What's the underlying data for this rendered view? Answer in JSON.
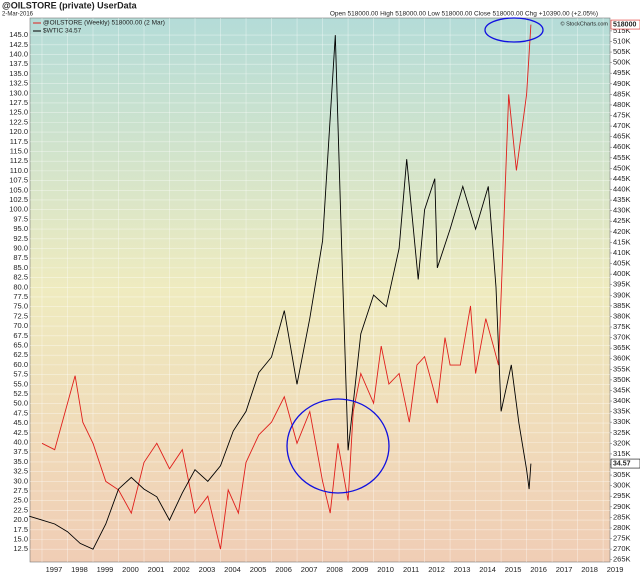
{
  "chart_data": {
    "type": "line",
    "title": "@OILSTORE (private) UserData",
    "subtitle": "2-Mar-2016",
    "quote": "Open 518000.00  High 518000.00  Low 518000.00  Close 518000.00  Chg +10390.00 (+2.05%)",
    "credit": "© StockCharts.com",
    "grid": true,
    "xlim": [
      1996.53,
      2019.27
    ],
    "xticks": [
      1997,
      1998,
      1999,
      2000,
      2001,
      2002,
      2003,
      2004,
      2005,
      2006,
      2007,
      2008,
      2009,
      2010,
      2011,
      2012,
      2013,
      2014,
      2015,
      2016,
      2017,
      2018,
      2019
    ],
    "ylim": [
      9.2,
      149.4
    ],
    "yticks": [
      {
        "value": 12.5,
        "label": "12.5"
      },
      {
        "value": 15,
        "label": "15.0"
      },
      {
        "value": 17.5,
        "label": "17.5"
      },
      {
        "value": 20,
        "label": "20.0"
      },
      {
        "value": 22.5,
        "label": "22.5"
      },
      {
        "value": 25,
        "label": "25.0"
      },
      {
        "value": 27.5,
        "label": "27.5"
      },
      {
        "value": 30,
        "label": "30.0"
      },
      {
        "value": 32.5,
        "label": "32.5"
      },
      {
        "value": 35,
        "label": "35.0"
      },
      {
        "value": 37.5,
        "label": "37.5"
      },
      {
        "value": 40,
        "label": "40.0"
      },
      {
        "value": 42.5,
        "label": "42.5"
      },
      {
        "value": 45,
        "label": "45.0"
      },
      {
        "value": 47.5,
        "label": "47.5"
      },
      {
        "value": 50,
        "label": "50.0"
      },
      {
        "value": 52.5,
        "label": "52.5"
      },
      {
        "value": 55,
        "label": "55.0"
      },
      {
        "value": 57.5,
        "label": "57.5"
      },
      {
        "value": 60,
        "label": "60.0"
      },
      {
        "value": 62.5,
        "label": "62.5"
      },
      {
        "value": 65,
        "label": "65.0"
      },
      {
        "value": 67.5,
        "label": "67.5"
      },
      {
        "value": 70,
        "label": "70.0"
      },
      {
        "value": 72.5,
        "label": "72.5"
      },
      {
        "value": 75,
        "label": "75.0"
      },
      {
        "value": 77.5,
        "label": "77.5"
      },
      {
        "value": 80,
        "label": "80.0"
      },
      {
        "value": 82.5,
        "label": "82.5"
      },
      {
        "value": 85,
        "label": "85.0"
      },
      {
        "value": 87.5,
        "label": "87.5"
      },
      {
        "value": 90,
        "label": "90.0"
      },
      {
        "value": 92.5,
        "label": "92.5"
      },
      {
        "value": 95,
        "label": "95.0"
      },
      {
        "value": 97.5,
        "label": "97.5"
      },
      {
        "value": 100,
        "label": "100.0"
      },
      {
        "value": 102.5,
        "label": "102.5"
      },
      {
        "value": 105,
        "label": "105.0"
      },
      {
        "value": 107.5,
        "label": "107.5"
      },
      {
        "value": 110,
        "label": "110.0"
      },
      {
        "value": 112.5,
        "label": "112.5"
      },
      {
        "value": 115,
        "label": "115.0"
      },
      {
        "value": 117.5,
        "label": "117.5"
      },
      {
        "value": 120,
        "label": "120.0"
      },
      {
        "value": 122.5,
        "label": "122.5"
      },
      {
        "value": 125,
        "label": "125.0"
      },
      {
        "value": 127.5,
        "label": "127.5"
      },
      {
        "value": 130,
        "label": "130.0"
      },
      {
        "value": 132.5,
        "label": "132.5"
      },
      {
        "value": 135,
        "label": "135.0"
      },
      {
        "value": 137.5,
        "label": "137.5"
      },
      {
        "value": 140,
        "label": "140.0"
      },
      {
        "value": 142.5,
        "label": "142.5"
      },
      {
        "value": 145,
        "label": "145.0"
      }
    ],
    "y2lim": [
      263900,
      521100
    ],
    "y2ticks": [
      {
        "value": 265000,
        "label": "265K"
      },
      {
        "value": 270000,
        "label": "270K"
      },
      {
        "value": 275000,
        "label": "275K"
      },
      {
        "value": 280000,
        "label": "280K"
      },
      {
        "value": 285000,
        "label": "285K"
      },
      {
        "value": 290000,
        "label": "290K"
      },
      {
        "value": 295000,
        "label": "295K"
      },
      {
        "value": 300000,
        "label": "300K"
      },
      {
        "value": 305000,
        "label": "305K"
      },
      {
        "value": 310000,
        "label": "310K"
      },
      {
        "value": 315000,
        "label": "315K"
      },
      {
        "value": 320000,
        "label": "320K"
      },
      {
        "value": 325000,
        "label": "325K"
      },
      {
        "value": 330000,
        "label": "330K"
      },
      {
        "value": 335000,
        "label": "335K"
      },
      {
        "value": 340000,
        "label": "340K"
      },
      {
        "value": 345000,
        "label": "345K"
      },
      {
        "value": 350000,
        "label": "350K"
      },
      {
        "value": 355000,
        "label": "355K"
      },
      {
        "value": 360000,
        "label": "360K"
      },
      {
        "value": 365000,
        "label": "365K"
      },
      {
        "value": 370000,
        "label": "370K"
      },
      {
        "value": 375000,
        "label": "375K"
      },
      {
        "value": 380000,
        "label": "380K"
      },
      {
        "value": 385000,
        "label": "385K"
      },
      {
        "value": 390000,
        "label": "390K"
      },
      {
        "value": 395000,
        "label": "395K"
      },
      {
        "value": 400000,
        "label": "400K"
      },
      {
        "value": 405000,
        "label": "405K"
      },
      {
        "value": 410000,
        "label": "410K"
      },
      {
        "value": 415000,
        "label": "415K"
      },
      {
        "value": 420000,
        "label": "420K"
      },
      {
        "value": 425000,
        "label": "425K"
      },
      {
        "value": 430000,
        "label": "430K"
      },
      {
        "value": 435000,
        "label": "435K"
      },
      {
        "value": 440000,
        "label": "440K"
      },
      {
        "value": 445000,
        "label": "445K"
      },
      {
        "value": 450000,
        "label": "450K"
      },
      {
        "value": 455000,
        "label": "455K"
      },
      {
        "value": 460000,
        "label": "460K"
      },
      {
        "value": 465000,
        "label": "465K"
      },
      {
        "value": 470000,
        "label": "470K"
      },
      {
        "value": 475000,
        "label": "475K"
      },
      {
        "value": 480000,
        "label": "480K"
      },
      {
        "value": 485000,
        "label": "485K"
      },
      {
        "value": 490000,
        "label": "490K"
      },
      {
        "value": 495000,
        "label": "495K"
      },
      {
        "value": 500000,
        "label": "500K"
      },
      {
        "value": 505000,
        "label": "505K"
      },
      {
        "value": 510000,
        "label": "510K"
      },
      {
        "value": 515000,
        "label": "515K"
      }
    ],
    "series": [
      {
        "name": "@OILSTORE (Weekly) 518000.00 (2 Mar)",
        "color": "#e0201c",
        "axis": "y2",
        "x": [
          1997,
          1997.5,
          1998,
          1998.3,
          1998.6,
          1999,
          1999.5,
          2000,
          2000.5,
          2001,
          2001.5,
          2002,
          2002.5,
          2003,
          2003.5,
          2004,
          2004.3,
          2004.7,
          2005,
          2005.5,
          2006,
          2006.5,
          2007,
          2007.5,
          2008,
          2008.3,
          2008.6,
          2009,
          2009.2,
          2009.5,
          2010,
          2010.3,
          2010.6,
          2011,
          2011.4,
          2011.7,
          2012,
          2012.5,
          2012.8,
          2013,
          2013.4,
          2013.8,
          2014,
          2014.4,
          2014.7,
          2014.9,
          2015.1,
          2015.3,
          2015.6,
          2015.8,
          2016,
          2016.17
        ],
        "values": [
          320000,
          317000,
          339000,
          352000,
          330000,
          320000,
          302000,
          298000,
          287000,
          311000,
          320000,
          308000,
          317000,
          287000,
          295000,
          270000,
          298000,
          287000,
          311000,
          324000,
          330000,
          342000,
          320000,
          335000,
          302000,
          287000,
          320000,
          293000,
          335000,
          353000,
          339000,
          366000,
          348000,
          353000,
          330000,
          357000,
          361000,
          339000,
          370000,
          357000,
          357000,
          385000,
          353000,
          379000,
          366000,
          357000,
          421000,
          485000,
          449000,
          467000,
          485000,
          518000
        ]
      },
      {
        "name": "$WTIC 34.57",
        "color": "#000000",
        "x": [
          1996.5,
          1997,
          1997.5,
          1998,
          1998.5,
          1999,
          1999.5,
          2000,
          2000.5,
          2001,
          2001.5,
          2002,
          2002.5,
          2003,
          2003.5,
          2004,
          2004.5,
          2005,
          2005.5,
          2006,
          2006.5,
          2007,
          2007.5,
          2008,
          2008.5,
          2008.75,
          2009,
          2009.5,
          2010,
          2010.5,
          2011,
          2011.3,
          2011.75,
          2012,
          2012.4,
          2012.5,
          2013,
          2013.5,
          2014,
          2014.5,
          2014.8,
          2015,
          2015.4,
          2015.7,
          2016,
          2016.1,
          2016.17
        ],
        "values": [
          21,
          20,
          19,
          17,
          14,
          12.5,
          19,
          28,
          31,
          28,
          26,
          20,
          27,
          33,
          30,
          34,
          43,
          48,
          58,
          62,
          74,
          55,
          72,
          92,
          145,
          90,
          38,
          68,
          78,
          75,
          90,
          113,
          82,
          100,
          108,
          85,
          95,
          106,
          95,
          106,
          80,
          48,
          60,
          45,
          33,
          28,
          34.57
        ]
      }
    ]
  }
}
